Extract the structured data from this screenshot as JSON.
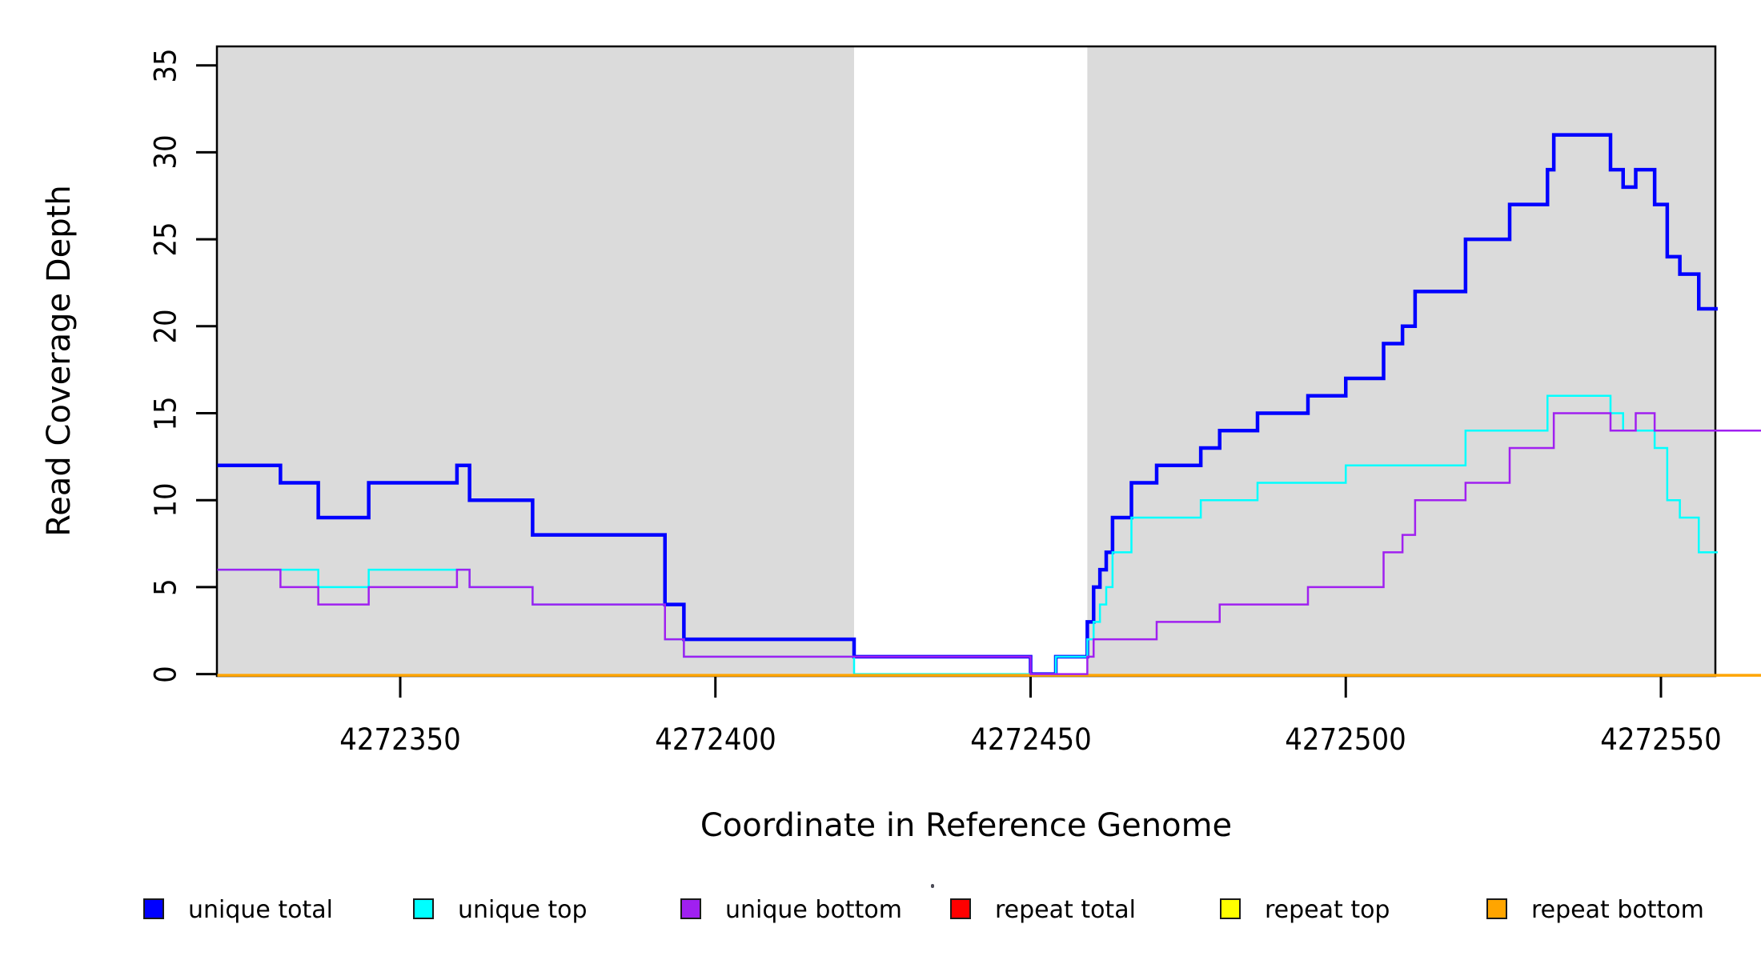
{
  "x_axis": {
    "label": "Coordinate in Reference Genome",
    "ticks": [
      {
        "coord": 4272350,
        "label": "4272350"
      },
      {
        "coord": 4272400,
        "label": "4272400"
      },
      {
        "coord": 4272450,
        "label": "4272450"
      },
      {
        "coord": 4272500,
        "label": "4272500"
      },
      {
        "coord": 4272550,
        "label": "4272550"
      }
    ]
  },
  "y_axis": {
    "label": "Read Coverage Depth",
    "ticks": [
      {
        "value": 0,
        "label": "0"
      },
      {
        "value": 5,
        "label": "5"
      },
      {
        "value": 10,
        "label": "10"
      },
      {
        "value": 15,
        "label": "15"
      },
      {
        "value": 20,
        "label": "20"
      },
      {
        "value": 25,
        "label": "25"
      },
      {
        "value": 30,
        "label": "30"
      },
      {
        "value": 35,
        "label": "35"
      }
    ]
  },
  "legend": {
    "items": [
      {
        "label": "unique total",
        "color": "#0000ff"
      },
      {
        "label": "unique top",
        "color": "#00ffff"
      },
      {
        "label": "unique bottom",
        "color": "#a020f0"
      },
      {
        "label": "repeat total",
        "color": "#ff0000"
      },
      {
        "label": "repeat top",
        "color": "#ffff00"
      },
      {
        "label": "repeat bottom",
        "color": "#ffa500"
      }
    ]
  },
  "colors": {
    "shaded_region": "#dbdbdb",
    "plot_border": "#000000",
    "background": "#ffffff"
  },
  "chart_data": {
    "type": "line",
    "subtype": "step-coverage-plot",
    "title": "",
    "xlabel": "Coordinate in Reference Genome",
    "ylabel": "Read Coverage Depth",
    "xlim": [
      4272321,
      4272566
    ],
    "ylim": [
      0,
      35
    ],
    "grid": false,
    "legend_position": "bottom",
    "shaded_bands_x": [
      [
        4272321,
        4272422
      ],
      [
        4272459,
        4272559
      ]
    ],
    "white_gap_x": [
      4272422,
      4272459
    ],
    "draw_order": [
      "unique total",
      "unique top",
      "repeat total",
      "repeat top",
      "repeat bottom",
      "unique bottom"
    ],
    "series": [
      {
        "name": "unique total",
        "color": "#0000ff",
        "width": 4.5,
        "end": 4272559,
        "y_offset": 0,
        "steps": [
          [
            4272321,
            12
          ],
          [
            4272331,
            11
          ],
          [
            4272337,
            9
          ],
          [
            4272345,
            11
          ],
          [
            4272359,
            12
          ],
          [
            4272361,
            10
          ],
          [
            4272371,
            8
          ],
          [
            4272392,
            4
          ],
          [
            4272395,
            2
          ],
          [
            4272422,
            1
          ],
          [
            4272450,
            0
          ],
          [
            4272454,
            1
          ],
          [
            4272459,
            3
          ],
          [
            4272460,
            5
          ],
          [
            4272461,
            6
          ],
          [
            4272462,
            7
          ],
          [
            4272463,
            9
          ],
          [
            4272466,
            11
          ],
          [
            4272470,
            12
          ],
          [
            4272477,
            13
          ],
          [
            4272480,
            14
          ],
          [
            4272486,
            15
          ],
          [
            4272494,
            16
          ],
          [
            4272500,
            17
          ],
          [
            4272506,
            19
          ],
          [
            4272509,
            20
          ],
          [
            4272511,
            22
          ],
          [
            4272519,
            25
          ],
          [
            4272526,
            27
          ],
          [
            4272532,
            29
          ],
          [
            4272533,
            31
          ],
          [
            4272542,
            29
          ],
          [
            4272544,
            28
          ],
          [
            4272546,
            29
          ],
          [
            4272549,
            27
          ],
          [
            4272551,
            24
          ],
          [
            4272553,
            23
          ],
          [
            4272556,
            21
          ]
        ]
      },
      {
        "name": "unique top",
        "color": "#00ffff",
        "width": 2.5,
        "end": 4272559,
        "y_offset": 0,
        "steps": [
          [
            4272321,
            6
          ],
          [
            4272337,
            5
          ],
          [
            4272345,
            6
          ],
          [
            4272361,
            5
          ],
          [
            4272371,
            4
          ],
          [
            4272392,
            2
          ],
          [
            4272395,
            1
          ],
          [
            4272422,
            0
          ],
          [
            4272454,
            1
          ],
          [
            4272459,
            2
          ],
          [
            4272460,
            3
          ],
          [
            4272461,
            4
          ],
          [
            4272462,
            5
          ],
          [
            4272463,
            7
          ],
          [
            4272466,
            9
          ],
          [
            4272477,
            10
          ],
          [
            4272486,
            11
          ],
          [
            4272500,
            12
          ],
          [
            4272519,
            14
          ],
          [
            4272532,
            16
          ],
          [
            4272542,
            15
          ],
          [
            4272544,
            14
          ],
          [
            4272549,
            13
          ],
          [
            4272551,
            10
          ],
          [
            4272553,
            9
          ],
          [
            4272556,
            7
          ]
        ]
      },
      {
        "name": "unique bottom",
        "color": "#a020f0",
        "width": 2.5,
        "end": 4272566,
        "y_offset": 0,
        "steps": [
          [
            4272321,
            6
          ],
          [
            4272331,
            5
          ],
          [
            4272337,
            4
          ],
          [
            4272345,
            5
          ],
          [
            4272359,
            6
          ],
          [
            4272361,
            5
          ],
          [
            4272371,
            4
          ],
          [
            4272392,
            2
          ],
          [
            4272395,
            1
          ],
          [
            4272450,
            0
          ],
          [
            4272459,
            1
          ],
          [
            4272460,
            2
          ],
          [
            4272470,
            3
          ],
          [
            4272480,
            4
          ],
          [
            4272494,
            5
          ],
          [
            4272506,
            7
          ],
          [
            4272509,
            8
          ],
          [
            4272511,
            10
          ],
          [
            4272519,
            11
          ],
          [
            4272526,
            13
          ],
          [
            4272533,
            15
          ],
          [
            4272542,
            14
          ],
          [
            4272546,
            15
          ],
          [
            4272549,
            14
          ]
        ]
      },
      {
        "name": "repeat total",
        "color": "#ff0000",
        "width": 2.5,
        "end": 4272566,
        "y_offset": 1.5,
        "steps": [
          [
            4272321,
            0
          ]
        ]
      },
      {
        "name": "repeat top",
        "color": "#ffff00",
        "width": 2.5,
        "end": 4272566,
        "y_offset": 1.5,
        "steps": [
          [
            4272321,
            0
          ]
        ]
      },
      {
        "name": "repeat bottom",
        "color": "#ffa500",
        "width": 3.5,
        "end": 4272566,
        "y_offset": 1.5,
        "steps": [
          [
            4272321,
            0
          ]
        ]
      }
    ]
  }
}
